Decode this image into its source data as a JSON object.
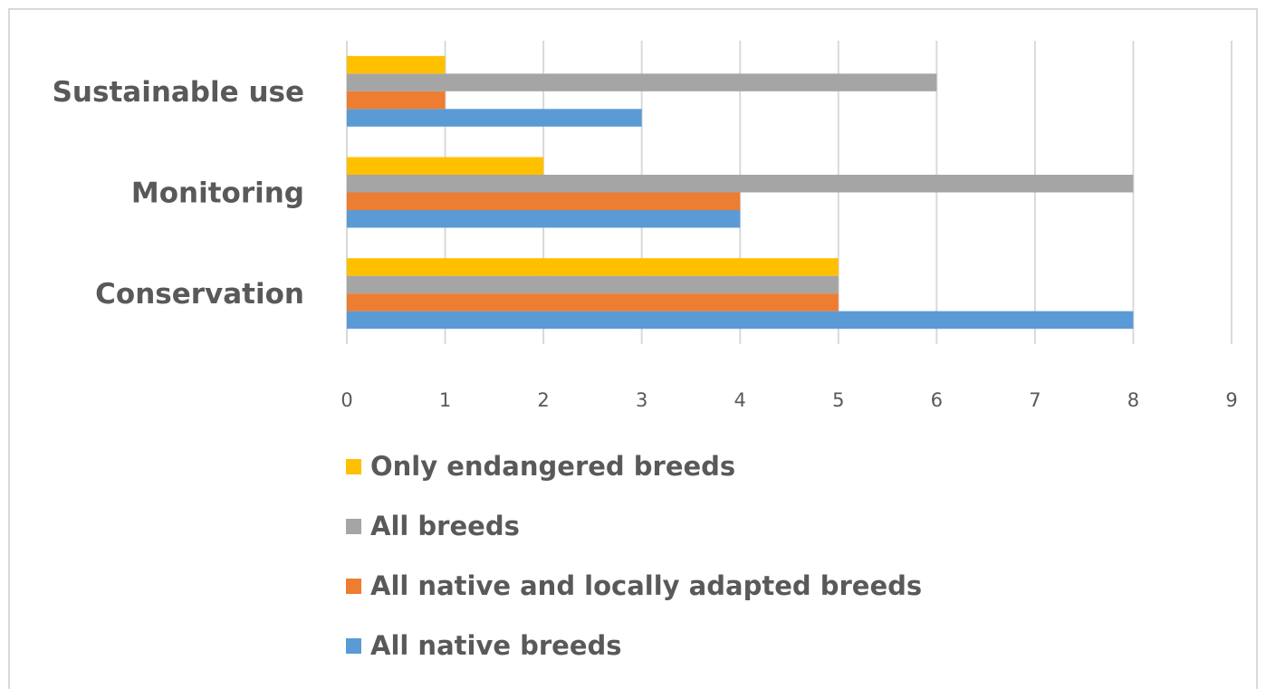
{
  "chart_data": {
    "type": "bar",
    "orientation": "horizontal",
    "categories": [
      "Conservation",
      "Monitoring",
      "Sustainable use"
    ],
    "series": [
      {
        "name": "All native breeds",
        "color": "#5b9bd5",
        "values": [
          8,
          4,
          3
        ]
      },
      {
        "name": "All native and locally adapted breeds",
        "color": "#ed7d31",
        "values": [
          5,
          4,
          1
        ]
      },
      {
        "name": "All breeds",
        "color": "#a5a5a5",
        "values": [
          5,
          8,
          6
        ]
      },
      {
        "name": "Only endangered breeds",
        "color": "#ffc000",
        "values": [
          5,
          2,
          1
        ]
      }
    ],
    "xlim": [
      0,
      9
    ],
    "xticks": [
      "0",
      "1",
      "2",
      "3",
      "4",
      "5",
      "6",
      "7",
      "8",
      "9"
    ],
    "grid": "vertical",
    "legend_position": "bottom",
    "legend_order": [
      "Only endangered breeds",
      "All breeds",
      "All native and locally adapted breeds",
      "All native breeds"
    ],
    "title": "",
    "xlabel": "",
    "ylabel": ""
  }
}
